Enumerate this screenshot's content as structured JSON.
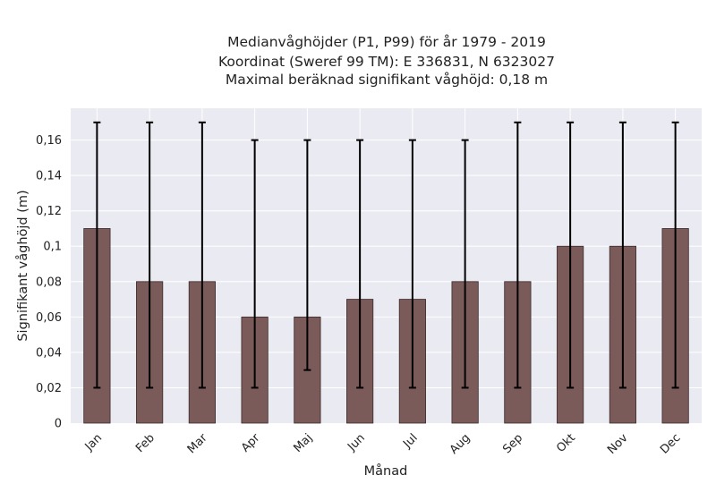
{
  "chart_data": {
    "type": "bar",
    "title_lines": [
      "Medianvåghöjder (P1, P99) för år 1979 - 2019",
      "Koordinat (Sweref 99 TM): E 336831, N 6323027",
      "Maximal beräknad signifikant våghöjd: 0,18 m"
    ],
    "xlabel": "Månad",
    "ylabel": "Signifikant våghöjd (m)",
    "categories": [
      "Jan",
      "Feb",
      "Mar",
      "Apr",
      "Maj",
      "Jun",
      "Jul",
      "Aug",
      "Sep",
      "Okt",
      "Nov",
      "Dec"
    ],
    "values": [
      0.11,
      0.08,
      0.08,
      0.06,
      0.06,
      0.07,
      0.07,
      0.08,
      0.08,
      0.1,
      0.1,
      0.11
    ],
    "error_low": [
      0.02,
      0.02,
      0.02,
      0.02,
      0.03,
      0.02,
      0.02,
      0.02,
      0.02,
      0.02,
      0.02,
      0.02
    ],
    "error_high": [
      0.17,
      0.17,
      0.17,
      0.16,
      0.16,
      0.16,
      0.16,
      0.16,
      0.17,
      0.17,
      0.17,
      0.17
    ],
    "yticks": [
      0,
      0.02,
      0.04,
      0.06,
      0.08,
      0.1,
      0.12,
      0.14,
      0.16
    ],
    "ytick_labels": [
      "0",
      "0,02",
      "0,04",
      "0,06",
      "0,08",
      "0,1",
      "0,12",
      "0,14",
      "0,16"
    ],
    "ylim": [
      0,
      0.178
    ],
    "grid": true,
    "colors": {
      "bar": "#7b5a5a",
      "bar_edge": "#3a2a2a",
      "error": "#000000",
      "plot_bg": "#eaeaf2",
      "grid": "#ffffff"
    }
  }
}
